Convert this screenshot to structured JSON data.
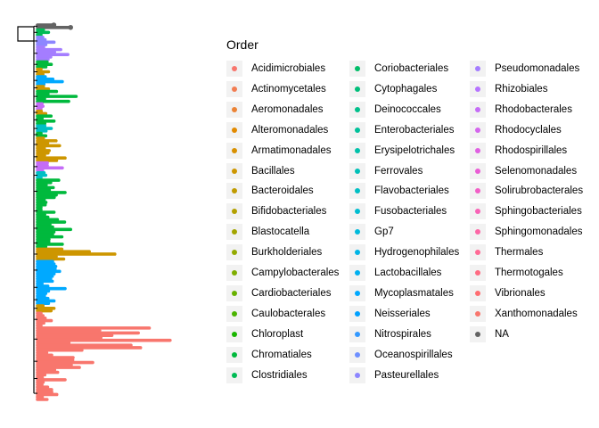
{
  "chart_data": {
    "type": "tree",
    "legend_title": "Order",
    "legend_position": "right",
    "orders": [
      {
        "name": "Acidimicrobiales",
        "color": "#F8766D"
      },
      {
        "name": "Actinomycetales",
        "color": "#F27D52"
      },
      {
        "name": "Aeromonadales",
        "color": "#EB8335"
      },
      {
        "name": "Alteromonadales",
        "color": "#E28A00"
      },
      {
        "name": "Armatimonadales",
        "color": "#D89000"
      },
      {
        "name": "Bacillales",
        "color": "#CD9600"
      },
      {
        "name": "Bacteroidales",
        "color": "#C09B00"
      },
      {
        "name": "Bifidobacteriales",
        "color": "#B3A000"
      },
      {
        "name": "Blastocatella",
        "color": "#A3A500"
      },
      {
        "name": "Burkholderiales",
        "color": "#93AA00"
      },
      {
        "name": "Campylobacterales",
        "color": "#7FAE00"
      },
      {
        "name": "Cardiobacteriales",
        "color": "#68B100"
      },
      {
        "name": "Caulobacterales",
        "color": "#4BB400"
      },
      {
        "name": "Chloroplast",
        "color": "#1AB600"
      },
      {
        "name": "Chromatiales",
        "color": "#00B93D"
      },
      {
        "name": "Clostridiales",
        "color": "#00BB54"
      },
      {
        "name": "Coriobacteriales",
        "color": "#00BD68"
      },
      {
        "name": "Cytophagales",
        "color": "#00BE7A"
      },
      {
        "name": "Deinococcales",
        "color": "#00C08B"
      },
      {
        "name": "Enterobacteriales",
        "color": "#00C19B"
      },
      {
        "name": "Erysipelotrichales",
        "color": "#00C1AA"
      },
      {
        "name": "Ferrovales",
        "color": "#00C0B8"
      },
      {
        "name": "Flavobacteriales",
        "color": "#00BFC4"
      },
      {
        "name": "Fusobacteriales",
        "color": "#00BDD0"
      },
      {
        "name": "Gp7",
        "color": "#00BADB"
      },
      {
        "name": "Hydrogenophilales",
        "color": "#00B5E6"
      },
      {
        "name": "Lactobacillales",
        "color": "#00B0F0"
      },
      {
        "name": "Mycoplasmatales",
        "color": "#00A9FF"
      },
      {
        "name": "Neisseriales",
        "color": "#00A1FF"
      },
      {
        "name": "Nitrospirales",
        "color": "#3399FF"
      },
      {
        "name": "Oceanospirillales",
        "color": "#6E8FFF"
      },
      {
        "name": "Pasteurellales",
        "color": "#8D86FF"
      },
      {
        "name": "Pseudomonadales",
        "color": "#A47DFF"
      },
      {
        "name": "Rhizobiales",
        "color": "#B674FF"
      },
      {
        "name": "Rhodobacterales",
        "color": "#C56CF7"
      },
      {
        "name": "Rhodocyclales",
        "color": "#D466ED"
      },
      {
        "name": "Rhodospirillales",
        "color": "#E060E2"
      },
      {
        "name": "Selenomonadales",
        "color": "#EA5DD5"
      },
      {
        "name": "Solirubrobacterales",
        "color": "#F25FC7"
      },
      {
        "name": "Sphingobacteriales",
        "color": "#F863B7"
      },
      {
        "name": "Sphingomonadales",
        "color": "#FC67A6"
      },
      {
        "name": "Thermales",
        "color": "#FF6A95"
      },
      {
        "name": "Thermotogales",
        "color": "#FF6C83"
      },
      {
        "name": "Vibrionales",
        "color": "#FF6D71"
      },
      {
        "name": "Xanthomonadales",
        "color": "#F8766D"
      },
      {
        "name": "NA",
        "color": "#636363"
      }
    ],
    "clades": [
      {
        "order": "NA",
        "tips": 2,
        "max_len": 0.6
      },
      {
        "order": "Clostridiales",
        "tips": 3,
        "max_len": 0.2
      },
      {
        "order": "Pasteurellales",
        "tips": 4,
        "max_len": 0.3
      },
      {
        "order": "Pseudomonadales",
        "tips": 6,
        "max_len": 0.55
      },
      {
        "order": "Chromatiales",
        "tips": 3,
        "max_len": 0.25
      },
      {
        "order": "Bacillales",
        "tips": 3,
        "max_len": 0.2
      },
      {
        "order": "Mycoplasmatales",
        "tips": 4,
        "max_len": 0.45
      },
      {
        "order": "Bacillales",
        "tips": 2,
        "max_len": 0.2
      },
      {
        "order": "Chromatiales",
        "tips": 5,
        "max_len": 0.7
      },
      {
        "order": "Rhodobacterales",
        "tips": 3,
        "max_len": 0.1
      },
      {
        "order": "Bacillales",
        "tips": 2,
        "max_len": 0.15
      },
      {
        "order": "Chromatiales",
        "tips": 4,
        "max_len": 0.3
      },
      {
        "order": "Flavobacteriales",
        "tips": 3,
        "max_len": 0.25
      },
      {
        "order": "Chromatiales",
        "tips": 2,
        "max_len": 0.15
      },
      {
        "order": "Bacillales",
        "tips": 6,
        "max_len": 0.4
      },
      {
        "order": "Bacillales",
        "tips": 4,
        "max_len": 0.5
      },
      {
        "order": "Rhodobacterales",
        "tips": 4,
        "max_len": 0.45
      },
      {
        "order": "Flavobacteriales",
        "tips": 3,
        "max_len": 0.15
      },
      {
        "order": "Chromatiales",
        "tips": 10,
        "max_len": 0.5
      },
      {
        "order": "Chromatiales",
        "tips": 6,
        "max_len": 0.3
      },
      {
        "order": "Chromatiales",
        "tips": 8,
        "max_len": 0.6
      },
      {
        "order": "Chromatiales",
        "tips": 4,
        "max_len": 0.45
      },
      {
        "order": "Bacillales",
        "tips": 5,
        "max_len": 1.4
      },
      {
        "order": "Mycoplasmatales",
        "tips": 8,
        "max_len": 0.4
      },
      {
        "order": "Mycoplasmatales",
        "tips": 6,
        "max_len": 0.5
      },
      {
        "order": "Mycoplasmatales",
        "tips": 4,
        "max_len": 0.3
      },
      {
        "order": "Bacillales",
        "tips": 3,
        "max_len": 0.3
      },
      {
        "order": "Acidimicrobiales",
        "tips": 6,
        "max_len": 0.25
      },
      {
        "order": "Acidimicrobiales",
        "tips": 10,
        "max_len": 2.4
      },
      {
        "order": "Acidimicrobiales",
        "tips": 8,
        "max_len": 1.0
      },
      {
        "order": "Acidimicrobiales",
        "tips": 6,
        "max_len": 0.5
      },
      {
        "order": "Acidimicrobiales",
        "tips": 6,
        "max_len": 0.35
      }
    ]
  }
}
